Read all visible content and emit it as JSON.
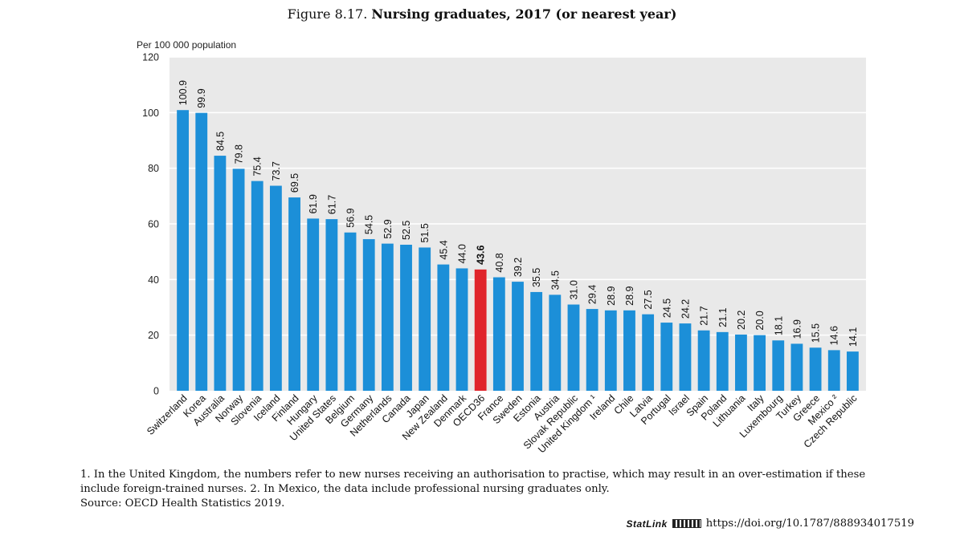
{
  "figure": {
    "prefix": "Figure 8.17.",
    "title": "Nursing graduates, 2017 (or nearest year)"
  },
  "chart_data": {
    "type": "bar",
    "ylabel": "Per 100 000 population",
    "ylim": [
      0,
      120
    ],
    "yticks": [
      0,
      20,
      40,
      60,
      80,
      100,
      120
    ],
    "grid": true,
    "bar_color": "#1c8fd8",
    "highlight_color": "#e0242b",
    "highlight_category": "OECD36",
    "categories": [
      "Switzerland",
      "Korea",
      "Australia",
      "Norway",
      "Slovenia",
      "Iceland",
      "Finland",
      "Hungary",
      "United States",
      "Belgium",
      "Germany",
      "Netherlands",
      "Canada",
      "Japan",
      "New Zealand",
      "Denmark",
      "OECD36",
      "France",
      "Sweden",
      "Estonia",
      "Austria",
      "Slovak Republic",
      "United Kingdom ¹",
      "Ireland",
      "Chile",
      "Latvia",
      "Portugal",
      "Israel",
      "Spain",
      "Poland",
      "Lithuania",
      "Italy",
      "Luxembourg",
      "Turkey",
      "Greece",
      "Mexico ²",
      "Czech Republic"
    ],
    "values": [
      100.9,
      99.9,
      84.5,
      79.8,
      75.4,
      73.7,
      69.5,
      61.9,
      61.7,
      56.9,
      54.5,
      52.9,
      52.5,
      51.5,
      45.4,
      44.0,
      43.6,
      40.8,
      39.2,
      35.5,
      34.5,
      31.0,
      29.4,
      28.9,
      28.9,
      27.5,
      24.5,
      24.2,
      21.7,
      21.1,
      20.2,
      20.0,
      18.1,
      16.9,
      15.5,
      14.6,
      14.1
    ],
    "value_labels": [
      "100.9",
      "99.9",
      "84.5",
      "79.8",
      "75.4",
      "73.7",
      "69.5",
      "61.9",
      "61.7",
      "56.9",
      "54.5",
      "52.9",
      "52.5",
      "51.5",
      "45.4",
      "44.0",
      "43.6",
      "40.8",
      "39.2",
      "35.5",
      "34.5",
      "31.0",
      "29.4",
      "28.9",
      "28.9",
      "27.5",
      "24.5",
      "24.2",
      "21.7",
      "21.1",
      "20.2",
      "20.0",
      "18.1",
      "16.9",
      "15.5",
      "14.6",
      "14.1"
    ]
  },
  "footnotes": {
    "line1": "1. In the United Kingdom, the numbers refer to new nurses receiving an authorisation to practise, which may result in an over-estimation if these",
    "line2": "include foreign-trained nurses. 2. In Mexico, the data include professional nursing graduates only.",
    "source": "Source: OECD Health Statistics 2019."
  },
  "statlink": {
    "logo": "StatLink",
    "url": "https://doi.org/10.1787/888934017519"
  }
}
